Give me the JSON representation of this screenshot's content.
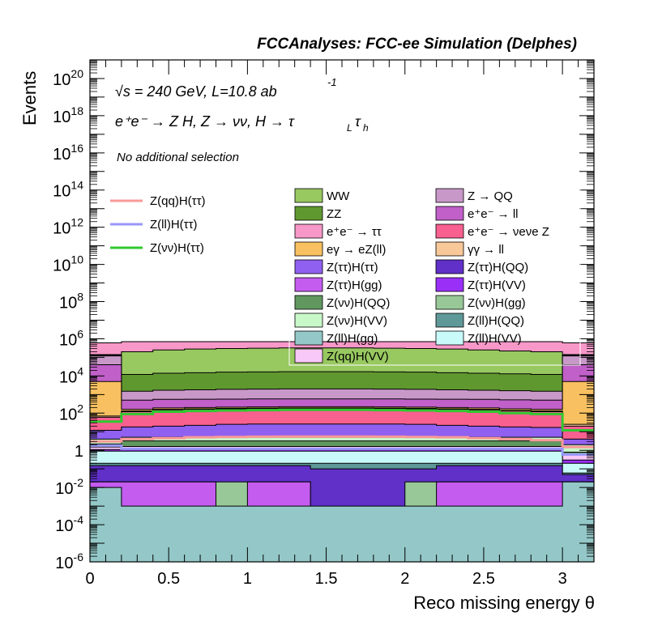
{
  "chart_data": {
    "type": "area",
    "title": "FCCAnalyses: FCC-ee Simulation (Delphes)",
    "xlabel": "Reco missing energy θ",
    "ylabel": "Events",
    "yscale": "log",
    "xlim": [
      0,
      3.2
    ],
    "ylim": [
      1e-06,
      1e+21
    ],
    "x_ticks": [
      "0",
      "0.5",
      "1",
      "1.5",
      "2",
      "2.5",
      "3"
    ],
    "x_tick_values": [
      0,
      0.5,
      1,
      1.5,
      2,
      2.5,
      3
    ],
    "y_tick_values": [
      1e-06,
      0.0001,
      0.01,
      1,
      100.0,
      10000.0,
      1000000.0,
      100000000.0,
      10000000000.0,
      1000000000000.0,
      100000000000000.0,
      1e+16,
      1e+18,
      1e+20
    ],
    "y_ticks": [
      {
        "base": "10",
        "exp": "-6"
      },
      {
        "base": "10",
        "exp": "-4"
      },
      {
        "base": "10",
        "exp": "-2"
      },
      {
        "base": "1",
        "exp": ""
      },
      {
        "base": "10",
        "exp": "2"
      },
      {
        "base": "10",
        "exp": "4"
      },
      {
        "base": "10",
        "exp": "6"
      },
      {
        "base": "10",
        "exp": "8"
      },
      {
        "base": "10",
        "exp": "10"
      },
      {
        "base": "10",
        "exp": "12"
      },
      {
        "base": "10",
        "exp": "14"
      },
      {
        "base": "10",
        "exp": "16"
      },
      {
        "base": "10",
        "exp": "18"
      },
      {
        "base": "10",
        "exp": "20"
      }
    ],
    "annotations": {
      "energy": "√s = 240 GeV, L=10.8 ab",
      "energy_exp": "-1",
      "process": "e⁺e⁻ → Z H, Z → νν, H → τ",
      "process_sub1": "L",
      "process_tau2": "τ",
      "process_sub2": "h",
      "selection": "No additional selection"
    },
    "bin_edges": [
      0,
      0.2,
      0.4,
      0.6,
      0.8,
      1.0,
      1.2,
      1.4,
      1.6,
      1.8,
      2.0,
      2.2,
      2.4,
      2.6,
      2.8,
      3.0,
      3.2
    ],
    "stack_cumulative": [
      {
        "name": "Z(ll)H(gg)",
        "color": "#94c8c8",
        "values": [
          0.01,
          0.001,
          0.001,
          0.001,
          0.001,
          0.001,
          0.001,
          0.001,
          0.001,
          0.001,
          0.001,
          0.001,
          0.001,
          0.001,
          0.001,
          0.02
        ]
      },
      {
        "name": "Z(ττ)H(gg)",
        "color": "#c45cf0",
        "values": [
          0.02,
          0.02,
          0.02,
          0.02,
          1e-05,
          0.02,
          0.02,
          1e-05,
          1e-05,
          1e-05,
          1e-05,
          0.02,
          0.02,
          0.02,
          0.02,
          0.02
        ]
      },
      {
        "name": "Z(νν)H(gg)",
        "color": "#98c898",
        "values": [
          0.02,
          0.02,
          0.02,
          0.02,
          0.02,
          0.02,
          0.02,
          1e-05,
          1e-05,
          1e-05,
          0.02,
          0.02,
          0.02,
          0.02,
          0.02,
          0.02
        ]
      },
      {
        "name": "Z(ττ)H(QQ)",
        "color": "#6030c8",
        "values": [
          0.15,
          0.15,
          0.15,
          0.15,
          0.15,
          0.15,
          0.15,
          0.1,
          0.1,
          0.1,
          0.1,
          0.15,
          0.15,
          0.15,
          0.15,
          0.05
        ]
      },
      {
        "name": "Z(ll)H(QQ)",
        "color": "#5f9898",
        "values": [
          0.2,
          0.2,
          0.2,
          0.2,
          0.2,
          0.2,
          0.2,
          0.2,
          0.2,
          0.2,
          0.2,
          0.2,
          0.2,
          0.2,
          0.2,
          0.06
        ]
      },
      {
        "name": "Z(ll)H(VV)",
        "color": "#c8fafa",
        "values": [
          0.9,
          0.9,
          0.9,
          0.9,
          0.9,
          0.9,
          0.9,
          0.9,
          0.9,
          0.9,
          0.9,
          0.9,
          0.9,
          0.9,
          0.9,
          0.2
        ]
      },
      {
        "name": "Z(ττ)H(VV)",
        "color": "#9a30f8",
        "values": [
          1.1,
          1.1,
          1.1,
          1.1,
          1.1,
          1.1,
          1.1,
          1.1,
          1.1,
          1.1,
          1.1,
          1.1,
          1.1,
          1.1,
          1.1,
          0.3
        ]
      },
      {
        "name": "Z(qq)H(VV)",
        "color": "#f8c8f8",
        "values": [
          1.5,
          1.6,
          1.6,
          1.6,
          1.6,
          1.6,
          1.6,
          1.6,
          1.6,
          1.6,
          1.6,
          1.6,
          1.6,
          1.6,
          1.6,
          0.6
        ]
      },
      {
        "name": "Z(νν)H(QQ)",
        "color": "#609860",
        "values": [
          2.2,
          3.2,
          3.2,
          3.2,
          3.2,
          3.2,
          3.2,
          3.2,
          3.2,
          3.2,
          3.2,
          3.2,
          3.2,
          3.2,
          3.2,
          0.8
        ]
      },
      {
        "name": "Z(νν)H(VV)",
        "color": "#c8f8c8",
        "values": [
          4,
          5,
          5,
          5,
          5,
          5,
          5,
          5,
          5,
          5,
          5,
          5,
          5,
          5,
          5,
          2
        ]
      },
      {
        "name": "Z(ττ)H(ττ)",
        "color": "#9060f0",
        "values": [
          12,
          18,
          20,
          22,
          25,
          26,
          26,
          26,
          26,
          26,
          25,
          22,
          20,
          18,
          17,
          4
        ]
      },
      {
        "name": "e⁺e⁻ → ν_e ν_e Z",
        "color": "#f86090",
        "values": [
          60,
          120,
          150,
          160,
          170,
          175,
          180,
          180,
          180,
          175,
          170,
          160,
          150,
          130,
          120,
          20
        ]
      },
      {
        "name": "γγ → ll",
        "color": "#f8c898",
        "values": [
          70,
          130,
          160,
          170,
          180,
          185,
          190,
          190,
          190,
          185,
          180,
          170,
          160,
          140,
          130,
          25
        ]
      },
      {
        "name": "eγ → eZ(ll)",
        "color": "#f8c060",
        "values": [
          5000,
          160,
          190,
          200,
          210,
          215,
          220,
          220,
          220,
          215,
          210,
          200,
          190,
          170,
          160,
          5000
        ]
      },
      {
        "name": "e⁺e⁻ → ll",
        "color": "#c060c8",
        "values": [
          40000,
          500,
          550,
          560,
          570,
          580,
          580,
          580,
          580,
          580,
          570,
          560,
          550,
          520,
          500,
          40000
        ]
      },
      {
        "name": "Z → QQ",
        "color": "#c898c8",
        "values": [
          120000,
          1500,
          1700,
          1800,
          1900,
          1950,
          2000,
          2000,
          2000,
          1950,
          1900,
          1800,
          1700,
          1600,
          1500,
          120000
        ]
      },
      {
        "name": "ZZ",
        "color": "#609830",
        "values": [
          130000,
          12000,
          14000,
          15000,
          16000,
          16500,
          17000,
          17000,
          17000,
          16500,
          16000,
          15000,
          14000,
          13000,
          12000,
          130000
        ]
      },
      {
        "name": "WW",
        "color": "#98c860",
        "values": [
          140000,
          200000,
          250000,
          280000,
          300000,
          310000,
          320000,
          320000,
          320000,
          310000,
          300000,
          280000,
          250000,
          220000,
          200000,
          140000
        ]
      },
      {
        "name": "e⁺e⁻ → ττ",
        "color": "#f898c8",
        "values": [
          600000,
          700000,
          700000,
          700000,
          700000,
          700000,
          700000,
          700000,
          700000,
          700000,
          700000,
          700000,
          700000,
          700000,
          700000,
          600000
        ]
      }
    ],
    "signal_lines": [
      {
        "name": "Z(qq)H(ττ)",
        "color": "#f89898",
        "values": [
          3,
          4,
          4.5,
          5,
          5.2,
          5.4,
          5.5,
          5.5,
          5.5,
          5.4,
          5.2,
          5,
          4.5,
          4,
          3.5,
          1.5
        ]
      },
      {
        "name": "Z(ll)H(ττ)",
        "color": "#9898f8",
        "values": [
          1.8,
          1.2,
          1.2,
          1.2,
          1.2,
          1.2,
          1.2,
          1.2,
          1.2,
          1.2,
          1.2,
          1.2,
          1.2,
          1.2,
          1.2,
          0.6
        ]
      },
      {
        "name": "Z(νν)H(ττ)",
        "color": "#30c830",
        "values": [
          35,
          90,
          120,
          130,
          140,
          145,
          150,
          150,
          150,
          145,
          140,
          130,
          120,
          100,
          90,
          12
        ]
      }
    ],
    "legend_signal": [
      {
        "name": "Z(qq)H(ττ)",
        "color": "#f89898"
      },
      {
        "name": "Z(ll)H(ττ)",
        "color": "#9898f8"
      },
      {
        "name": "Z(νν)H(ττ)",
        "color": "#30c830"
      }
    ],
    "legend_bkg": [
      {
        "name": "WW",
        "color": "#98c860"
      },
      {
        "name": "Z → QQ",
        "color": "#c898c8"
      },
      {
        "name": "ZZ",
        "color": "#609830"
      },
      {
        "name": "e⁺e⁻ → ll",
        "color": "#c060c8"
      },
      {
        "name": "e⁺e⁻ → ττ",
        "color": "#f898c8"
      },
      {
        "name": "e⁺e⁻ → νeνe Z",
        "color": "#f86090"
      },
      {
        "name": "eγ → eZ(ll)",
        "color": "#f8c060"
      },
      {
        "name": "γγ → ll",
        "color": "#f8c898"
      },
      {
        "name": "Z(ττ)H(ττ)",
        "color": "#9060f0"
      },
      {
        "name": "Z(ττ)H(QQ)",
        "color": "#6030c8"
      },
      {
        "name": "Z(ττ)H(gg)",
        "color": "#c45cf0"
      },
      {
        "name": "Z(ττ)H(VV)",
        "color": "#9a30f8"
      },
      {
        "name": "Z(νν)H(QQ)",
        "color": "#609860"
      },
      {
        "name": "Z(νν)H(gg)",
        "color": "#98c898"
      },
      {
        "name": "Z(νν)H(VV)",
        "color": "#c8f8c8"
      },
      {
        "name": "Z(ll)H(QQ)",
        "color": "#5f9898"
      },
      {
        "name": "Z(ll)H(gg)",
        "color": "#94c8c8"
      },
      {
        "name": "Z(ll)H(VV)",
        "color": "#c8fafa"
      },
      {
        "name": "Z(qq)H(VV)",
        "color": "#f8c8f8"
      }
    ]
  }
}
